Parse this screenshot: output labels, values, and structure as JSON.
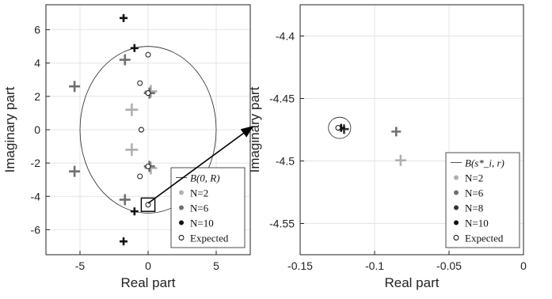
{
  "chart_data": [
    {
      "type": "scatter",
      "xlabel": "Real part",
      "ylabel": "Imaginary part",
      "xlim": [
        -7.5,
        7.5
      ],
      "ylim": [
        -7.5,
        7.5
      ],
      "xticks": [
        -5,
        0,
        5
      ],
      "yticks": [
        -6,
        -4,
        -2,
        0,
        2,
        4,
        6
      ],
      "grid": true,
      "circle": {
        "center": [
          0,
          0
        ],
        "rx": 5,
        "ry": 5
      },
      "zoom_box": {
        "x": [
          -0.5,
          0.5
        ],
        "y": [
          -4.9,
          -4.1
        ]
      },
      "series": [
        {
          "name": "N=2",
          "color": "#b0b0b0",
          "points": [
            [
              -1.2,
              1.2
            ],
            [
              -1.2,
              -1.2
            ],
            [
              0.2,
              2.3
            ],
            [
              0.2,
              -2.3
            ]
          ]
        },
        {
          "name": "N=6",
          "color": "#707070",
          "points": [
            [
              -5.4,
              2.6
            ],
            [
              -5.4,
              -2.5
            ],
            [
              -1.7,
              4.2
            ],
            [
              -1.7,
              -4.2
            ],
            [
              0.1,
              2.2
            ],
            [
              0.1,
              -2.2
            ]
          ]
        },
        {
          "name": "N=10",
          "color": "#111111",
          "points": [
            [
              -1.8,
              6.7
            ],
            [
              -1.8,
              -6.7
            ],
            [
              -1.0,
              4.9
            ],
            [
              -1.0,
              -4.9
            ]
          ]
        }
      ],
      "expected": [
        [
          0.0,
          4.5
        ],
        [
          0.0,
          -4.5
        ],
        [
          -0.6,
          2.8
        ],
        [
          -0.6,
          -2.8
        ],
        [
          0.0,
          2.2
        ],
        [
          0.0,
          -2.2
        ],
        [
          -0.5,
          0.0
        ]
      ],
      "legend": {
        "placement": "bottom-right",
        "title": "B(0, R)",
        "entries": [
          "N=2",
          "N=6",
          "N=10",
          "Expected"
        ]
      }
    },
    {
      "type": "scatter",
      "xlabel": "Real part",
      "ylabel": "Imaginary part",
      "xlim": [
        -0.15,
        0
      ],
      "ylim": [
        -4.575,
        -4.375
      ],
      "xticks": [
        -0.15,
        -0.1,
        -0.05,
        0
      ],
      "xtick_labels": [
        "-0.15",
        "-0.1",
        "-0.05",
        "0"
      ],
      "yticks": [
        -4.55,
        -4.5,
        -4.45,
        -4.4
      ],
      "ytick_labels": [
        "-4.55",
        "-4.5",
        "-4.45",
        "-4.4"
      ],
      "grid": true,
      "circle": {
        "center": [
          -0.1235,
          -4.4735
        ],
        "rx": 0.0075,
        "ry": 0.0085
      },
      "series": [
        {
          "name": "N=2",
          "color": "#b0b0b0",
          "points": [
            [
              -0.0825,
              -4.4995
            ]
          ]
        },
        {
          "name": "N=6",
          "color": "#707070",
          "points": [
            [
              -0.0855,
              -4.4765
            ]
          ]
        },
        {
          "name": "N=8",
          "color": "#333333",
          "points": [
            [
              -0.1205,
              -4.4745
            ]
          ]
        },
        {
          "name": "N=10",
          "color": "#111111",
          "points": [
            [
              -0.1225,
              -4.4735
            ]
          ]
        }
      ],
      "expected": [
        [
          -0.1245,
          -4.4735
        ]
      ],
      "legend": {
        "placement": "bottom-right",
        "title": "B(s*_i, r)",
        "entries": [
          "N=2",
          "N=6",
          "N=8",
          "N=10",
          "Expected"
        ]
      }
    }
  ]
}
